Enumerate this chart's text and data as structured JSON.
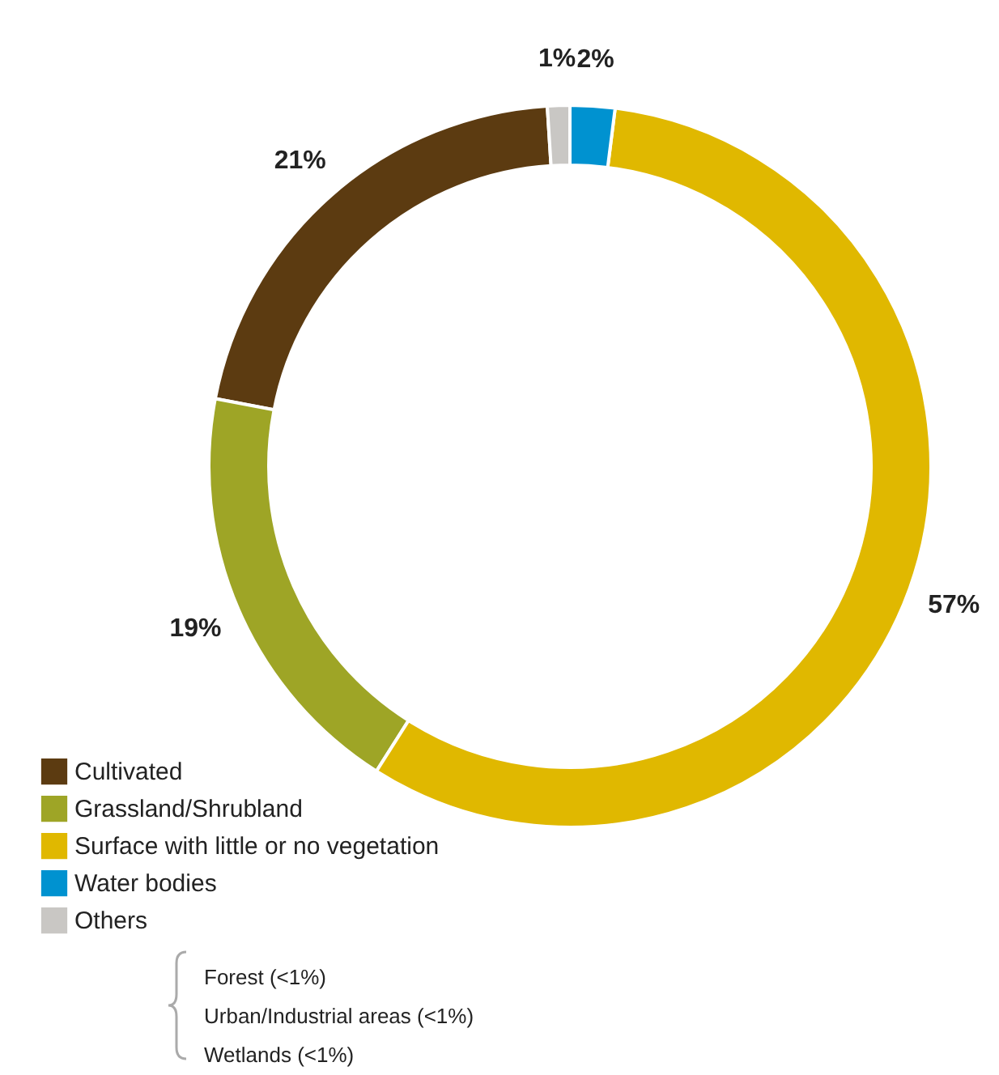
{
  "chart_data": {
    "type": "donut",
    "categories": [
      "Cultivated",
      "Grassland/Shrubland",
      "Surface with little or no vegetation",
      "Water bodies",
      "Others"
    ],
    "values": [
      21,
      19,
      57,
      2,
      1
    ],
    "colors": [
      "#5c3b11",
      "#9ea526",
      "#e0b800",
      "#0092d0",
      "#c9c7c4"
    ],
    "value_labels": [
      "21%",
      "19%",
      "57%",
      "2%",
      "1%"
    ],
    "legend": "bottom left",
    "annotations": [
      "Forest (<1%)",
      "Urban/Industrial areas (<1%)",
      "Wetlands (<1%)"
    ]
  }
}
